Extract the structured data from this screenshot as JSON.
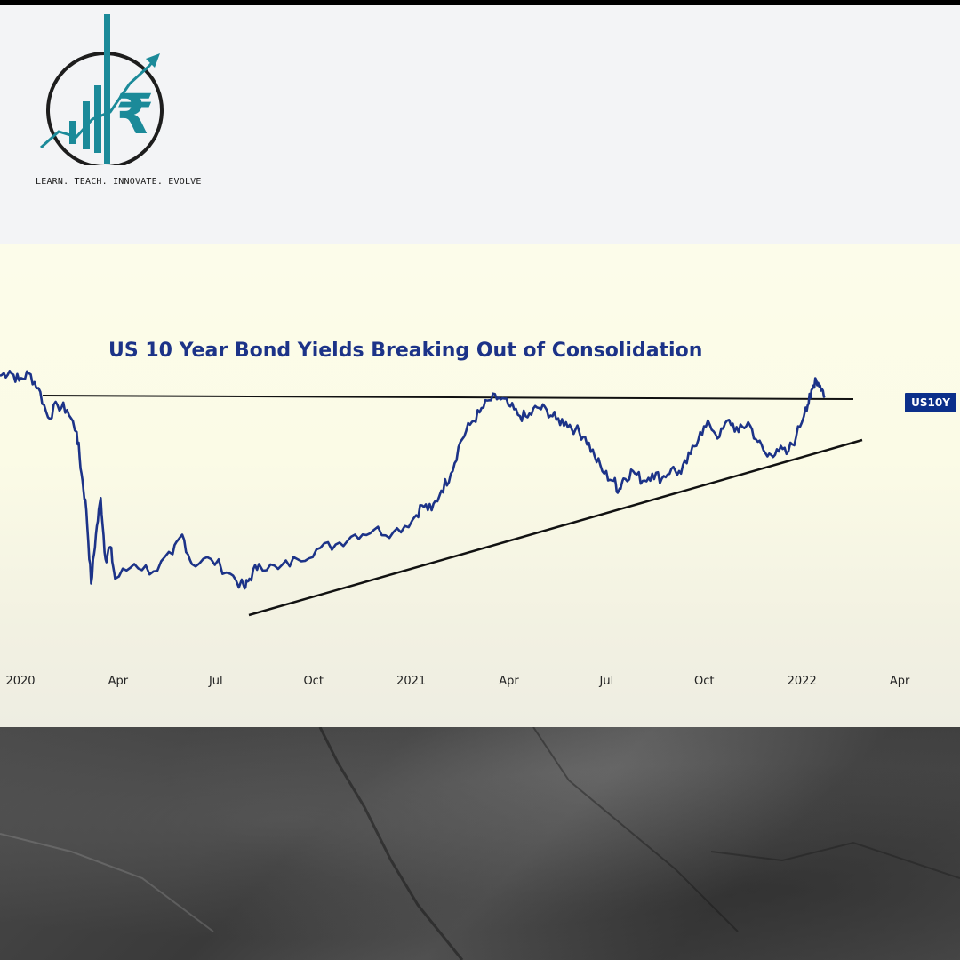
{
  "brand": {
    "tagline": "LEARN. TEACH. INNOVATE. EVOLVE",
    "logo_icon": "rupee-growth-chart-logo",
    "logo_symbol": "₹",
    "colors": {
      "teal": "#1b8a99",
      "dark": "#1d1d1d"
    }
  },
  "chart_data": {
    "type": "line",
    "title": "US 10 Year Bond Yields Breaking Out of Consolidation",
    "ticker": "US10Y",
    "xlabel": "",
    "ylabel": "",
    "grid": false,
    "x_tick_labels": [
      "2020",
      "Apr",
      "Jul",
      "Oct",
      "2021",
      "Apr",
      "Jul",
      "Oct",
      "2022",
      "Apr"
    ],
    "x_range": [
      "2020-01",
      "2022-04"
    ],
    "y_axis_labels_shown": false,
    "y_range_relative": [
      0,
      1
    ],
    "series": [
      {
        "color": "#1c3388",
        "points_relative": [
          [
            0.0,
            0.95
          ],
          [
            0.01,
            0.97
          ],
          [
            0.02,
            0.93
          ],
          [
            0.03,
            0.96
          ],
          [
            0.04,
            0.9
          ],
          [
            0.05,
            0.78
          ],
          [
            0.06,
            0.83
          ],
          [
            0.07,
            0.81
          ],
          [
            0.08,
            0.72
          ],
          [
            0.085,
            0.55
          ],
          [
            0.09,
            0.4
          ],
          [
            0.095,
            0.1
          ],
          [
            0.1,
            0.3
          ],
          [
            0.105,
            0.45
          ],
          [
            0.11,
            0.2
          ],
          [
            0.115,
            0.25
          ],
          [
            0.12,
            0.12
          ],
          [
            0.14,
            0.18
          ],
          [
            0.16,
            0.15
          ],
          [
            0.18,
            0.22
          ],
          [
            0.19,
            0.3
          ],
          [
            0.2,
            0.18
          ],
          [
            0.22,
            0.2
          ],
          [
            0.24,
            0.14
          ],
          [
            0.255,
            0.08
          ],
          [
            0.26,
            0.12
          ],
          [
            0.27,
            0.18
          ],
          [
            0.29,
            0.16
          ],
          [
            0.31,
            0.2
          ],
          [
            0.33,
            0.24
          ],
          [
            0.35,
            0.26
          ],
          [
            0.37,
            0.3
          ],
          [
            0.39,
            0.32
          ],
          [
            0.41,
            0.31
          ],
          [
            0.43,
            0.36
          ],
          [
            0.44,
            0.42
          ],
          [
            0.45,
            0.4
          ],
          [
            0.46,
            0.48
          ],
          [
            0.47,
            0.55
          ],
          [
            0.48,
            0.68
          ],
          [
            0.49,
            0.75
          ],
          [
            0.5,
            0.8
          ],
          [
            0.51,
            0.85
          ],
          [
            0.52,
            0.86
          ],
          [
            0.53,
            0.83
          ],
          [
            0.54,
            0.79
          ],
          [
            0.55,
            0.78
          ],
          [
            0.56,
            0.82
          ],
          [
            0.57,
            0.81
          ],
          [
            0.58,
            0.77
          ],
          [
            0.59,
            0.76
          ],
          [
            0.6,
            0.73
          ],
          [
            0.61,
            0.7
          ],
          [
            0.62,
            0.62
          ],
          [
            0.63,
            0.55
          ],
          [
            0.64,
            0.52
          ],
          [
            0.645,
            0.48
          ],
          [
            0.65,
            0.53
          ],
          [
            0.66,
            0.56
          ],
          [
            0.67,
            0.52
          ],
          [
            0.68,
            0.55
          ],
          [
            0.69,
            0.53
          ],
          [
            0.7,
            0.57
          ],
          [
            0.71,
            0.55
          ],
          [
            0.72,
            0.63
          ],
          [
            0.73,
            0.72
          ],
          [
            0.74,
            0.75
          ],
          [
            0.75,
            0.7
          ],
          [
            0.76,
            0.77
          ],
          [
            0.77,
            0.72
          ],
          [
            0.78,
            0.76
          ],
          [
            0.79,
            0.68
          ],
          [
            0.8,
            0.62
          ],
          [
            0.81,
            0.65
          ],
          [
            0.82,
            0.63
          ],
          [
            0.83,
            0.7
          ],
          [
            0.84,
            0.82
          ],
          [
            0.845,
            0.86
          ],
          [
            0.85,
            0.94
          ],
          [
            0.855,
            0.91
          ],
          [
            0.86,
            0.87
          ]
        ]
      }
    ],
    "annotations": [
      {
        "type": "resistance-line",
        "label": ""
      },
      {
        "type": "rising-support-line",
        "label": ""
      }
    ]
  }
}
